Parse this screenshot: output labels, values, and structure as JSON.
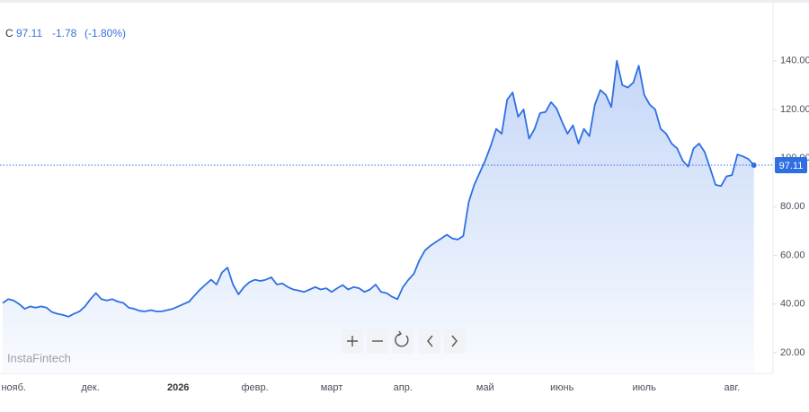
{
  "chart_data": {
    "type": "line",
    "header": {
      "symbol": "C",
      "change": "-1.78",
      "change_pct": "(-1.80%)"
    },
    "last_price": 97.11,
    "watermark": "InstaFintech",
    "categories": [
      null,
      null,
      "нояб.",
      null,
      null,
      null,
      null,
      null,
      null,
      null,
      null,
      null,
      null,
      null,
      null,
      null,
      "дек.",
      null,
      null,
      null,
      null,
      null,
      null,
      null,
      null,
      null,
      null,
      null,
      null,
      null,
      null,
      null,
      "2026",
      null,
      null,
      null,
      null,
      null,
      null,
      null,
      null,
      null,
      null,
      null,
      null,
      null,
      "февр.",
      null,
      null,
      null,
      null,
      null,
      null,
      null,
      null,
      null,
      null,
      null,
      null,
      null,
      "март",
      null,
      null,
      null,
      null,
      null,
      null,
      null,
      null,
      null,
      null,
      null,
      null,
      "апр.",
      null,
      null,
      null,
      null,
      null,
      null,
      null,
      null,
      null,
      null,
      null,
      null,
      null,
      null,
      "май",
      null,
      null,
      null,
      null,
      null,
      null,
      null,
      null,
      null,
      null,
      null,
      null,
      null,
      "июнь",
      null,
      null,
      null,
      null,
      null,
      null,
      null,
      null,
      null,
      null,
      null,
      null,
      null,
      null,
      "июль",
      null,
      null,
      null,
      null,
      null,
      null,
      null,
      null,
      null,
      null,
      null,
      null,
      null,
      null,
      null,
      "авг.",
      null,
      null,
      null,
      null
    ],
    "series": [
      {
        "color": "#2f6fe4",
        "values": [
          40.4,
          42,
          41.5,
          40,
          38,
          39,
          38.5,
          39,
          38.5,
          36.7,
          36,
          35.5,
          34.8,
          36,
          37,
          39,
          42,
          44.5,
          42,
          41.5,
          42,
          41,
          40.5,
          38.5,
          38,
          37.2,
          37,
          37.5,
          37,
          37,
          37.5,
          38,
          39,
          40,
          41,
          43.5,
          46,
          48,
          50,
          48,
          53,
          55,
          48,
          44,
          47,
          49,
          50,
          49.5,
          50,
          51,
          48,
          48.5,
          47,
          46,
          45.5,
          45,
          46,
          47,
          46,
          46.5,
          45,
          46.5,
          47.8,
          46,
          47,
          46.5,
          45,
          46,
          48,
          45,
          44.5,
          43,
          42,
          47,
          50,
          52.5,
          58,
          62,
          64,
          65.5,
          67,
          68.5,
          67,
          66.5,
          68,
          82,
          89,
          94,
          99,
          105,
          112,
          110,
          124,
          127,
          117,
          120,
          108,
          112,
          118.5,
          119,
          123,
          120.5,
          115,
          110,
          113.5,
          106,
          112,
          109,
          122,
          128,
          126,
          121,
          140,
          130,
          129,
          131,
          138,
          126,
          122,
          120,
          112,
          110,
          106,
          104,
          99,
          96.5,
          104,
          106,
          102.6,
          96,
          89,
          88.5,
          92.5,
          93,
          101.5,
          100.7,
          99.6,
          97.11
        ]
      }
    ],
    "ylim": [
      12,
      165
    ],
    "yticks": [
      {
        "value": 20,
        "label": "20.00"
      },
      {
        "value": 40,
        "label": "40.00"
      },
      {
        "value": 60,
        "label": "60.00"
      },
      {
        "value": 80,
        "label": "80.00"
      },
      {
        "value": 100,
        "label": "100.00"
      },
      {
        "value": 120,
        "label": "120.00"
      },
      {
        "value": 140,
        "label": "140.00"
      }
    ],
    "grid": false
  }
}
